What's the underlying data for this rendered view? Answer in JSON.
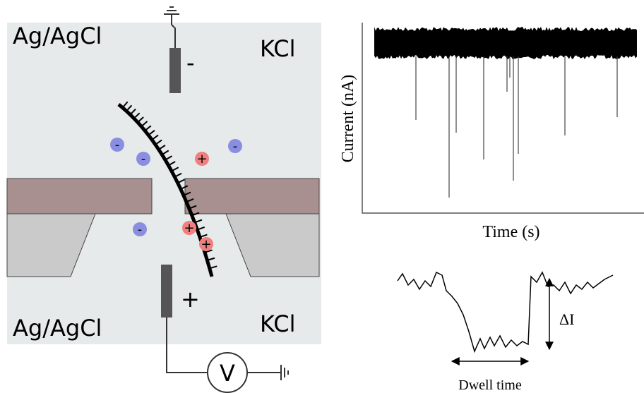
{
  "left_panel": {
    "electrode_top": "Ag/AgCl",
    "electrolyte_top": "KCl",
    "electrode_bottom": "Ag/AgCl",
    "electrolyte_bottom": "KCl",
    "top_polarity": "-",
    "bottom_polarity": "+",
    "voltmeter": "V",
    "ions": [
      {
        "sign": "-"
      },
      {
        "sign": "-"
      },
      {
        "sign": "-"
      },
      {
        "sign": "-"
      },
      {
        "sign": "+"
      },
      {
        "sign": "+"
      },
      {
        "sign": "+"
      }
    ]
  },
  "trace": {
    "y_label": "Current (nA)",
    "x_label": "Time (s)"
  },
  "event": {
    "amplitude_label": "ΔI",
    "duration_label": "Dwell time"
  }
}
